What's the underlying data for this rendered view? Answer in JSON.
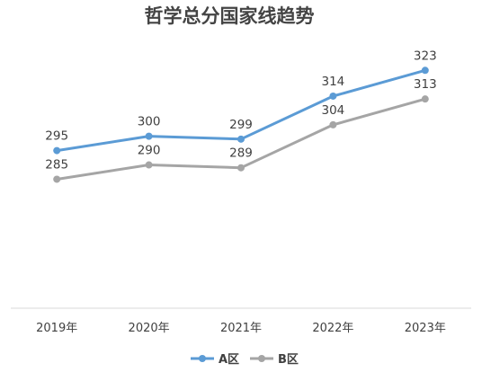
{
  "chart_data": {
    "type": "line",
    "title": "哲学总分国家线趋势",
    "xlabel": "",
    "ylabel": "",
    "categories": [
      "2019年",
      "2020年",
      "2021年",
      "2022年",
      "2023年"
    ],
    "series": [
      {
        "name": "A区",
        "values": [
          295,
          300,
          299,
          314,
          323
        ],
        "color": "#5b9bd5"
      },
      {
        "name": "B区",
        "values": [
          285,
          290,
          289,
          304,
          313
        ],
        "color": "#a5a5a5"
      }
    ],
    "ylim": [
      240,
      335
    ],
    "grid": false,
    "legend": "bottom",
    "data_labels": true
  }
}
